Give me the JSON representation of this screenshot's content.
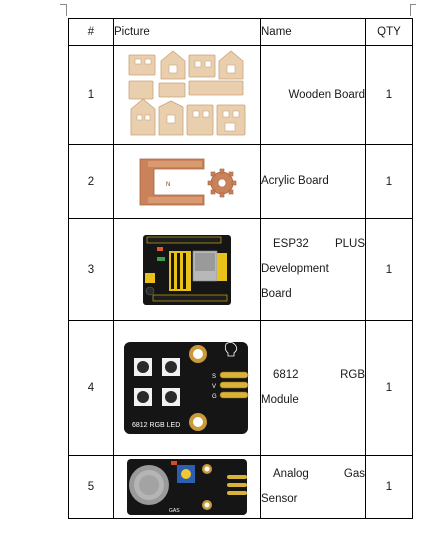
{
  "table": {
    "headers": {
      "num": "#",
      "picture": "Picture",
      "name": "Name",
      "qty": "QTY"
    },
    "rows": [
      {
        "num": "1",
        "name_lines": [
          [
            "Wooden Board"
          ]
        ],
        "qty": "1"
      },
      {
        "num": "2",
        "name_lines": [
          [
            "Acrylic Board"
          ]
        ],
        "qty": "1"
      },
      {
        "num": "3",
        "name_lines": [
          [
            "ESP32",
            "PLUS"
          ],
          [
            "Development"
          ],
          [
            "Board"
          ]
        ],
        "qty": "1"
      },
      {
        "num": "4",
        "name_lines": [
          [
            "6812",
            "RGB"
          ],
          [
            "Module"
          ]
        ],
        "qty": "1"
      },
      {
        "num": "5",
        "name_lines": [
          [
            "Analog",
            "Gas"
          ],
          [
            "Sensor"
          ]
        ],
        "qty": "1"
      }
    ]
  },
  "images": {
    "rgb_module_label": "6812 RGB LED",
    "rgb_pins": [
      "S",
      "V",
      "G"
    ],
    "gas_label": "GAS",
    "acrylic_mark": "N"
  },
  "colors": {
    "wood": "#e9cfae",
    "wood_dark": "#caa27a",
    "acrylic": "#c9825a",
    "pcb": "#151515",
    "header_yellow": "#e8c21a",
    "copper": "#c89a3a"
  }
}
